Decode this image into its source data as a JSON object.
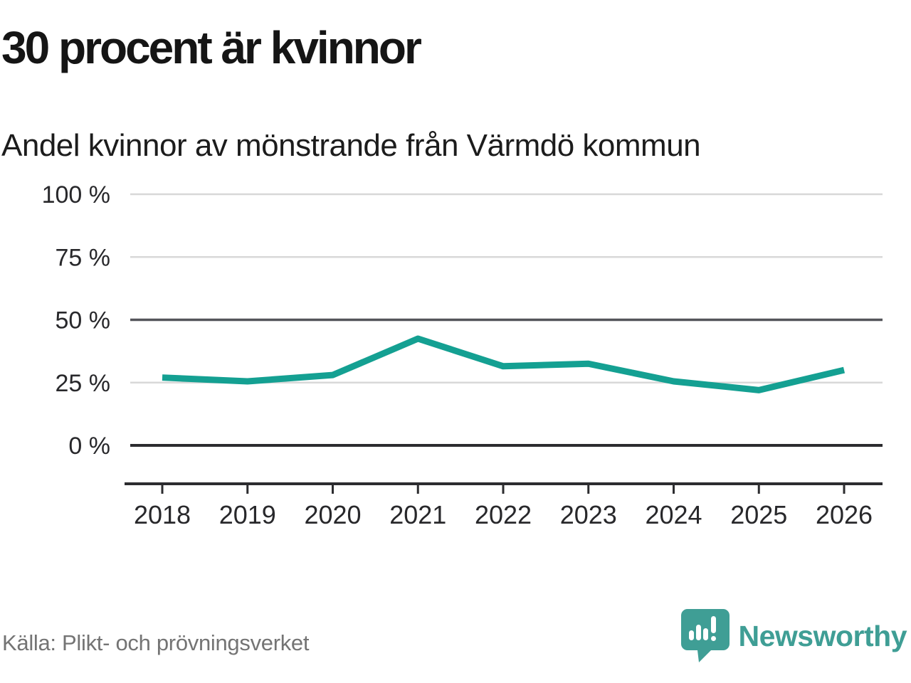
{
  "header": {
    "title": "30 procent är kvinnor",
    "subtitle": "Andel kvinnor av mönstrande från Värmdö kommun"
  },
  "footer": {
    "source": "Källa: Plikt- och prövningsverket",
    "logo_text": "Newsworthy"
  },
  "icons": {
    "logo_mark": "newsworthy-speech-bubble-with-bar-chart-and-exclamation"
  },
  "colors": {
    "line": "#14a092",
    "grid_light": "#d8d8d8",
    "grid_mid": "#54555a",
    "axis": "#2c2c2f",
    "tick_text": "#28282b",
    "title_text": "#151515",
    "muted_text": "#747474",
    "logo_teal": "#3f9e95",
    "background": "#ffffff"
  },
  "chart_data": {
    "type": "line",
    "title": "30 procent är kvinnor",
    "subtitle": "Andel kvinnor av mönstrande från Värmdö kommun",
    "categories": [
      "2018",
      "2019",
      "2020",
      "2021",
      "2022",
      "2023",
      "2024",
      "2025",
      "2026"
    ],
    "series": [
      {
        "name": "Andel kvinnor av mönstrande",
        "values": [
          27,
          25.5,
          28,
          42.5,
          31.5,
          32.5,
          25.5,
          22,
          30
        ]
      }
    ],
    "xlabel": "",
    "ylabel": "",
    "ylim": [
      0,
      100
    ],
    "yticks": [
      0,
      25,
      50,
      75,
      100
    ],
    "ytick_labels": [
      "0 %",
      "25 %",
      "50 %",
      "75 %",
      "100 %"
    ],
    "grid": "horizontal",
    "emphasized_gridlines": [
      0,
      50
    ],
    "legend": "none",
    "source": "Källa: Plikt- och prövningsverket"
  }
}
